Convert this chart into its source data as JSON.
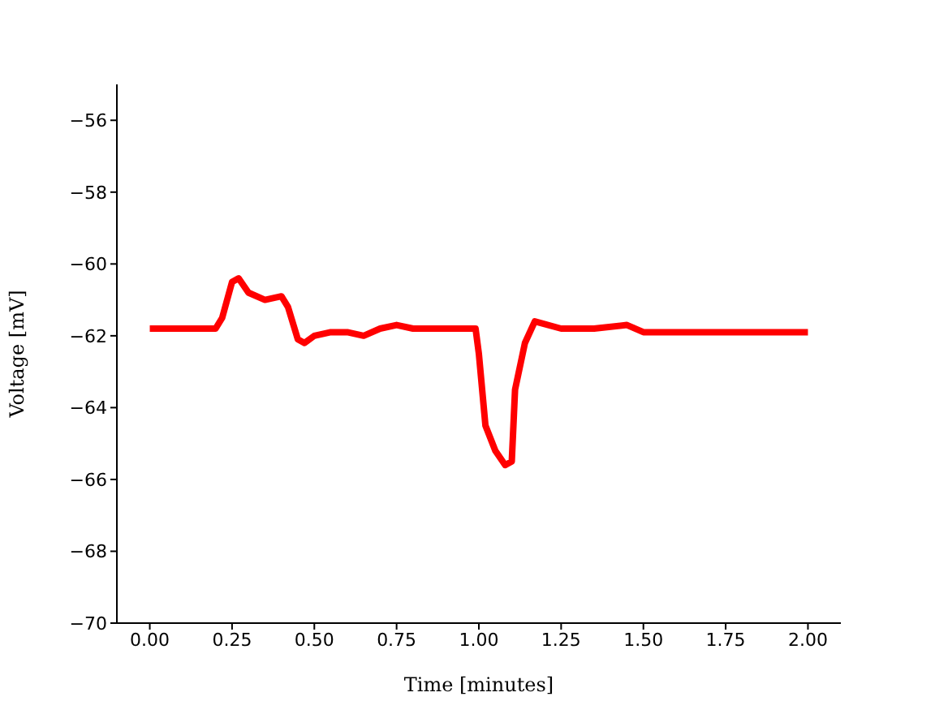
{
  "chart_data": {
    "type": "line",
    "xlabel": "Time [minutes]",
    "ylabel": "Voltage [mV]",
    "x": [
      0.0,
      0.1,
      0.2,
      0.22,
      0.25,
      0.27,
      0.3,
      0.35,
      0.4,
      0.42,
      0.45,
      0.47,
      0.5,
      0.55,
      0.6,
      0.65,
      0.7,
      0.75,
      0.8,
      0.9,
      0.99,
      1.0,
      1.02,
      1.05,
      1.08,
      1.1,
      1.11,
      1.14,
      1.17,
      1.25,
      1.35,
      1.45,
      1.5,
      1.6,
      1.75,
      1.85,
      2.0
    ],
    "series": [
      {
        "color": "#ff0000",
        "values": [
          -61.8,
          -61.8,
          -61.8,
          -61.5,
          -60.5,
          -60.4,
          -60.8,
          -61.0,
          -60.9,
          -61.2,
          -62.1,
          -62.2,
          -62.0,
          -61.9,
          -61.9,
          -62.0,
          -61.8,
          -61.7,
          -61.8,
          -61.8,
          -61.8,
          -62.5,
          -64.5,
          -65.2,
          -65.6,
          -65.5,
          -63.5,
          -62.2,
          -61.6,
          -61.8,
          -61.8,
          -61.7,
          -61.9,
          -61.9,
          -61.9,
          -61.9,
          -61.9
        ]
      }
    ],
    "xlim": [
      -0.1,
      2.1
    ],
    "xticks": [
      {
        "value": 0,
        "label": "0.00"
      },
      {
        "value": 0.25,
        "label": "0.25"
      },
      {
        "value": 0.5,
        "label": "0.50"
      },
      {
        "value": 0.75,
        "label": "0.75"
      },
      {
        "value": 1,
        "label": "1.00"
      },
      {
        "value": 1.25,
        "label": "1.25"
      },
      {
        "value": 1.5,
        "label": "1.50"
      },
      {
        "value": 1.75,
        "label": "1.75"
      },
      {
        "value": 2,
        "label": "2.00"
      }
    ],
    "ylim": [
      -70,
      -55
    ],
    "yticks": [
      {
        "value": -70,
        "label": "−70"
      },
      {
        "value": -68,
        "label": "−68"
      },
      {
        "value": -66,
        "label": "−66"
      },
      {
        "value": -64,
        "label": "−64"
      },
      {
        "value": -62,
        "label": "−62"
      },
      {
        "value": -60,
        "label": "−60"
      },
      {
        "value": -58,
        "label": "−58"
      },
      {
        "value": -56,
        "label": "−56"
      }
    ],
    "grid": false,
    "legend": false,
    "marker": "none",
    "line_style": "solid"
  }
}
